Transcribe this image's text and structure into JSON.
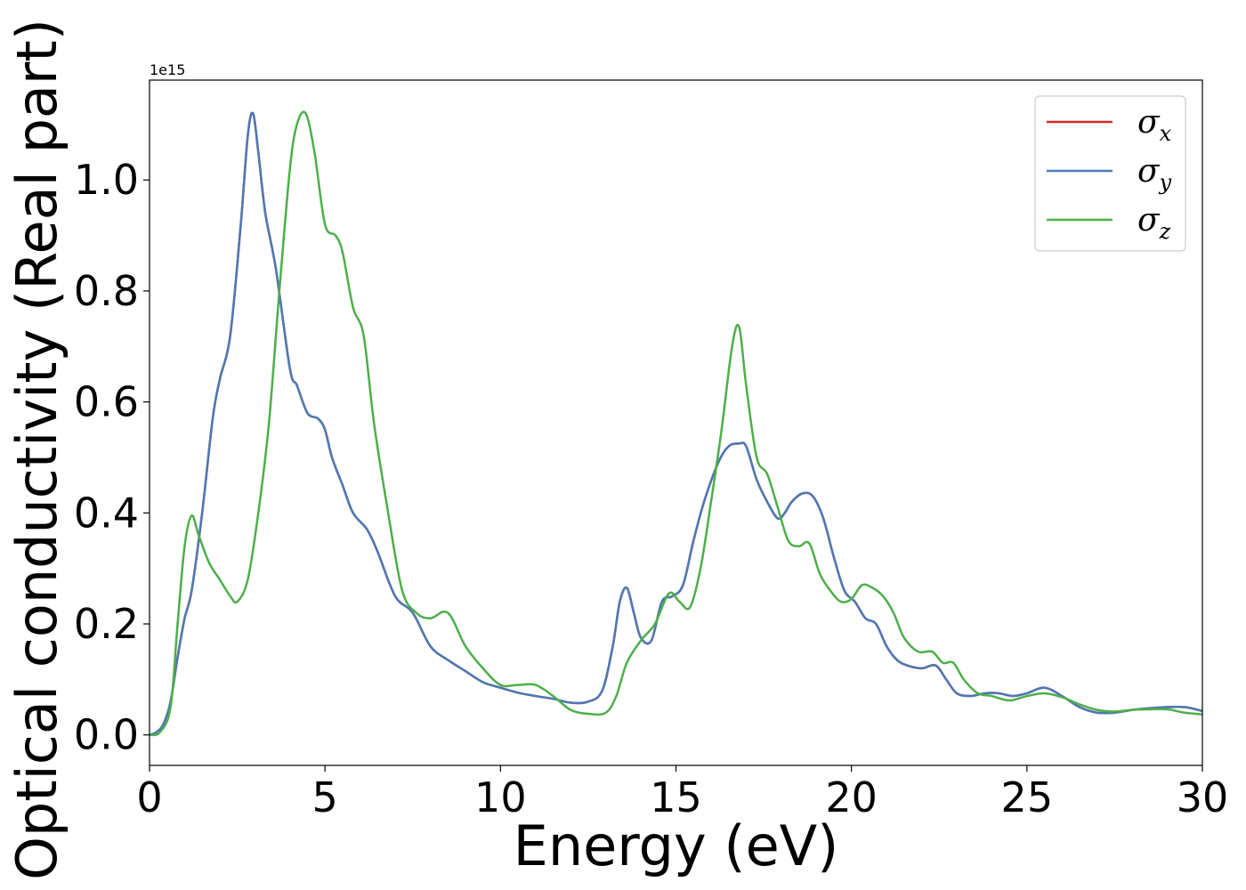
{
  "chart_data": {
    "type": "line",
    "xlabel": "Energy (eV)",
    "ylabel": "Optical conductivity (Real part)",
    "y_offset_label": "1e15",
    "xlim": [
      0,
      30
    ],
    "ylim": [
      -0.055,
      1.18
    ],
    "x_ticks": [
      0,
      5,
      10,
      15,
      20,
      25,
      30
    ],
    "x_tick_labels": [
      "0",
      "5",
      "10",
      "15",
      "20",
      "25",
      "30"
    ],
    "y_ticks": [
      0.0,
      0.2,
      0.4,
      0.6,
      0.8,
      1.0
    ],
    "y_tick_labels": [
      "0.0",
      "0.2",
      "0.4",
      "0.6",
      "0.8",
      "1.0"
    ],
    "grid": false,
    "legend_position": "top-right",
    "series": [
      {
        "name": "σx",
        "color": "#d62728",
        "x": [
          0,
          0.2,
          0.4,
          0.6,
          0.8,
          1.0,
          1.2,
          1.5,
          1.8,
          2.0,
          2.3,
          2.6,
          2.8,
          2.95,
          3.1,
          3.3,
          3.6,
          4.0,
          4.2,
          4.5,
          4.8,
          5.0,
          5.2,
          5.5,
          5.8,
          6.2,
          6.5,
          7.0,
          7.5,
          8.0,
          8.5,
          9.0,
          9.5,
          10.0,
          10.5,
          11.0,
          11.5,
          12.0,
          12.5,
          12.9,
          13.2,
          13.4,
          13.6,
          13.8,
          14.0,
          14.3,
          14.6,
          14.9,
          15.2,
          15.5,
          15.8,
          16.2,
          16.5,
          16.8,
          17.0,
          17.3,
          17.6,
          17.9,
          18.1,
          18.3,
          18.6,
          18.9,
          19.2,
          19.5,
          19.8,
          20.1,
          20.4,
          20.7,
          21.0,
          21.3,
          21.6,
          22.0,
          22.4,
          22.7,
          23.0,
          23.4,
          23.8,
          24.2,
          24.6,
          25.0,
          25.5,
          26.0,
          26.5,
          27.0,
          27.5,
          28.0,
          28.5,
          29.0,
          29.5,
          30.0
        ],
        "values": [
          0.0,
          0.005,
          0.02,
          0.06,
          0.14,
          0.21,
          0.26,
          0.4,
          0.57,
          0.64,
          0.72,
          0.92,
          1.08,
          1.12,
          1.05,
          0.94,
          0.84,
          0.66,
          0.63,
          0.58,
          0.57,
          0.55,
          0.5,
          0.45,
          0.4,
          0.37,
          0.33,
          0.25,
          0.22,
          0.16,
          0.135,
          0.115,
          0.095,
          0.085,
          0.076,
          0.07,
          0.065,
          0.058,
          0.06,
          0.08,
          0.16,
          0.24,
          0.265,
          0.22,
          0.175,
          0.17,
          0.24,
          0.25,
          0.27,
          0.35,
          0.42,
          0.49,
          0.52,
          0.525,
          0.52,
          0.46,
          0.42,
          0.39,
          0.4,
          0.42,
          0.435,
          0.43,
          0.39,
          0.32,
          0.26,
          0.24,
          0.21,
          0.2,
          0.16,
          0.135,
          0.125,
          0.12,
          0.125,
          0.1,
          0.075,
          0.07,
          0.075,
          0.075,
          0.07,
          0.075,
          0.085,
          0.07,
          0.05,
          0.04,
          0.04,
          0.045,
          0.048,
          0.05,
          0.05,
          0.043
        ]
      },
      {
        "name": "σy",
        "color": "#4a7ab5",
        "x": [
          0,
          0.2,
          0.4,
          0.6,
          0.8,
          1.0,
          1.2,
          1.5,
          1.8,
          2.0,
          2.3,
          2.6,
          2.8,
          2.95,
          3.1,
          3.3,
          3.6,
          4.0,
          4.2,
          4.5,
          4.8,
          5.0,
          5.2,
          5.5,
          5.8,
          6.2,
          6.5,
          7.0,
          7.5,
          8.0,
          8.5,
          9.0,
          9.5,
          10.0,
          10.5,
          11.0,
          11.5,
          12.0,
          12.5,
          12.9,
          13.2,
          13.4,
          13.6,
          13.8,
          14.0,
          14.3,
          14.6,
          14.9,
          15.2,
          15.5,
          15.8,
          16.2,
          16.5,
          16.8,
          17.0,
          17.3,
          17.6,
          17.9,
          18.1,
          18.3,
          18.6,
          18.9,
          19.2,
          19.5,
          19.8,
          20.1,
          20.4,
          20.7,
          21.0,
          21.3,
          21.6,
          22.0,
          22.4,
          22.7,
          23.0,
          23.4,
          23.8,
          24.2,
          24.6,
          25.0,
          25.5,
          26.0,
          26.5,
          27.0,
          27.5,
          28.0,
          28.5,
          29.0,
          29.5,
          30.0
        ],
        "values": [
          0.0,
          0.005,
          0.02,
          0.06,
          0.14,
          0.21,
          0.26,
          0.4,
          0.57,
          0.64,
          0.72,
          0.92,
          1.08,
          1.12,
          1.05,
          0.94,
          0.84,
          0.66,
          0.63,
          0.58,
          0.57,
          0.55,
          0.5,
          0.45,
          0.4,
          0.37,
          0.33,
          0.25,
          0.22,
          0.16,
          0.135,
          0.115,
          0.095,
          0.085,
          0.076,
          0.07,
          0.065,
          0.058,
          0.06,
          0.08,
          0.16,
          0.24,
          0.265,
          0.22,
          0.175,
          0.17,
          0.24,
          0.25,
          0.27,
          0.35,
          0.42,
          0.49,
          0.52,
          0.525,
          0.52,
          0.46,
          0.42,
          0.39,
          0.4,
          0.42,
          0.435,
          0.43,
          0.39,
          0.32,
          0.26,
          0.24,
          0.21,
          0.2,
          0.16,
          0.135,
          0.125,
          0.12,
          0.125,
          0.1,
          0.075,
          0.07,
          0.075,
          0.075,
          0.07,
          0.075,
          0.085,
          0.07,
          0.05,
          0.04,
          0.04,
          0.045,
          0.048,
          0.05,
          0.05,
          0.043
        ]
      },
      {
        "name": "σz",
        "color": "#4daf4a",
        "x": [
          0,
          0.3,
          0.6,
          0.8,
          1.0,
          1.2,
          1.4,
          1.7,
          2.0,
          2.3,
          2.5,
          2.8,
          3.1,
          3.4,
          3.7,
          4.0,
          4.2,
          4.45,
          4.7,
          5.0,
          5.3,
          5.5,
          5.8,
          6.1,
          6.4,
          6.8,
          7.2,
          7.6,
          8.0,
          8.5,
          9.0,
          9.5,
          10.0,
          10.5,
          11.0,
          11.5,
          12.0,
          12.5,
          13.0,
          13.3,
          13.6,
          14.0,
          14.4,
          14.8,
          15.1,
          15.4,
          15.7,
          16.0,
          16.3,
          16.6,
          16.8,
          17.0,
          17.3,
          17.6,
          17.9,
          18.2,
          18.5,
          18.8,
          19.1,
          19.4,
          19.7,
          20.0,
          20.3,
          20.6,
          20.9,
          21.2,
          21.5,
          21.9,
          22.3,
          22.6,
          22.9,
          23.2,
          23.6,
          24.0,
          24.5,
          25.0,
          25.5,
          26.0,
          26.5,
          27.0,
          27.5,
          28.0,
          28.5,
          29.0,
          29.5,
          30.0
        ],
        "values": [
          0.0,
          0.005,
          0.05,
          0.2,
          0.34,
          0.395,
          0.36,
          0.31,
          0.28,
          0.25,
          0.24,
          0.28,
          0.4,
          0.56,
          0.8,
          1.02,
          1.1,
          1.12,
          1.05,
          0.92,
          0.9,
          0.87,
          0.77,
          0.72,
          0.56,
          0.4,
          0.26,
          0.22,
          0.21,
          0.22,
          0.16,
          0.12,
          0.09,
          0.09,
          0.09,
          0.07,
          0.045,
          0.038,
          0.04,
          0.07,
          0.13,
          0.17,
          0.2,
          0.255,
          0.24,
          0.23,
          0.3,
          0.42,
          0.55,
          0.7,
          0.735,
          0.63,
          0.5,
          0.47,
          0.41,
          0.35,
          0.34,
          0.345,
          0.29,
          0.26,
          0.24,
          0.245,
          0.27,
          0.265,
          0.25,
          0.22,
          0.175,
          0.15,
          0.15,
          0.13,
          0.13,
          0.1,
          0.075,
          0.07,
          0.062,
          0.07,
          0.075,
          0.068,
          0.055,
          0.045,
          0.042,
          0.045,
          0.046,
          0.046,
          0.04,
          0.037
        ]
      }
    ]
  }
}
